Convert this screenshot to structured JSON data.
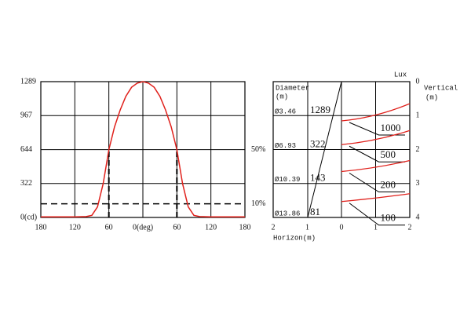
{
  "chart_data": [
    {
      "type": "line",
      "xlim": [
        -180,
        180
      ],
      "xticks": [
        {
          "value": -180,
          "label": "180"
        },
        {
          "value": -120,
          "label": "120"
        },
        {
          "value": -60,
          "label": "60"
        },
        {
          "value": 0,
          "label": "0(deg)"
        },
        60,
        120,
        180
      ],
      "ylim": [
        0,
        1289
      ],
      "yticks": [
        {
          "value": 0,
          "label": "0(cd)"
        },
        322,
        644,
        967,
        1289
      ],
      "grid": true,
      "series": [
        {
          "color": "#e0201b",
          "x": [
            -180,
            -150,
            -120,
            -100,
            -90,
            -80,
            -70,
            -60,
            -50,
            -40,
            -30,
            -20,
            -10,
            0,
            10,
            20,
            30,
            40,
            50,
            60,
            70,
            80,
            90,
            100,
            120,
            150,
            180
          ],
          "values": [
            5,
            5,
            5,
            8,
            20,
            100,
            320,
            644,
            860,
            1020,
            1150,
            1235,
            1275,
            1289,
            1275,
            1235,
            1150,
            1020,
            860,
            644,
            320,
            100,
            20,
            8,
            5,
            5,
            5
          ]
        }
      ],
      "reference_lines": [
        {
          "value": 644,
          "label": "50%"
        },
        {
          "value": 129,
          "label": "10%"
        }
      ],
      "beam_angles": [
        -60,
        60
      ]
    },
    {
      "type": "illuminance",
      "lux_title": "Lux",
      "diameter_title": "Diameter",
      "diameter_unit": "(m)",
      "xlabel": "Horizon(m)",
      "ylabel": "Vertical",
      "ylabel_unit": "(m)",
      "xlim": [
        -2,
        2
      ],
      "xticks": [
        {
          "value": -2,
          "label": "2"
        },
        {
          "value": -1,
          "label": "1"
        },
        0,
        1,
        2
      ],
      "ylim": [
        0,
        4
      ],
      "yticks": [
        0,
        1,
        2,
        3,
        4
      ],
      "distances": [
        1,
        2,
        3,
        4
      ],
      "diameters": [
        "Ø3.46",
        "Ø6.93",
        "Ø10.39",
        "Ø13.86"
      ],
      "center_lux": [
        1289,
        322,
        143,
        81
      ],
      "isolux": [
        1000,
        500,
        200,
        100
      ],
      "color": "#e0201b"
    }
  ]
}
